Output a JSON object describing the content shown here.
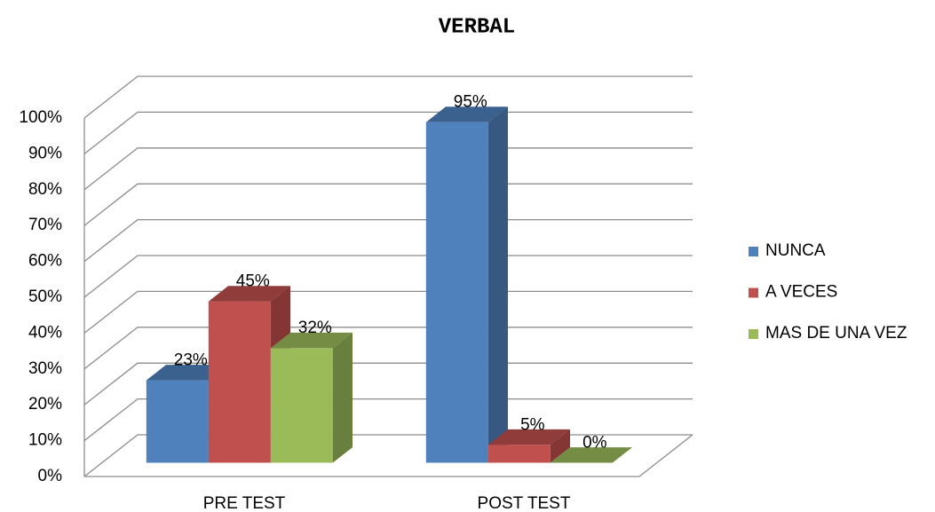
{
  "chart_data": {
    "type": "bar3d",
    "title": "VERBAL",
    "categories": [
      "PRE TEST",
      "POST TEST"
    ],
    "series": [
      {
        "name": "NUNCA",
        "color": "#4f81bd",
        "values": [
          23,
          95
        ],
        "value_labels": [
          "23%",
          "95%"
        ]
      },
      {
        "name": "A VECES",
        "color": "#c0504d",
        "values": [
          45,
          5
        ],
        "value_labels": [
          "45%",
          "5%"
        ]
      },
      {
        "name": "MAS DE UNA VEZ",
        "color": "#9bbb59",
        "values": [
          32,
          0
        ],
        "value_labels": [
          "32%",
          "0%"
        ]
      }
    ],
    "ylim": [
      0,
      100
    ],
    "yticks": [
      {
        "value": 0,
        "label": "0%"
      },
      {
        "value": 10,
        "label": "10%"
      },
      {
        "value": 20,
        "label": "20%"
      },
      {
        "value": 30,
        "label": "30%"
      },
      {
        "value": 40,
        "label": "40%"
      },
      {
        "value": 50,
        "label": "50%"
      },
      {
        "value": 60,
        "label": "60%"
      },
      {
        "value": 70,
        "label": "70%"
      },
      {
        "value": 80,
        "label": "80%"
      },
      {
        "value": 90,
        "label": "90%"
      },
      {
        "value": 100,
        "label": "100%"
      }
    ],
    "grid": true,
    "legend": "right"
  }
}
